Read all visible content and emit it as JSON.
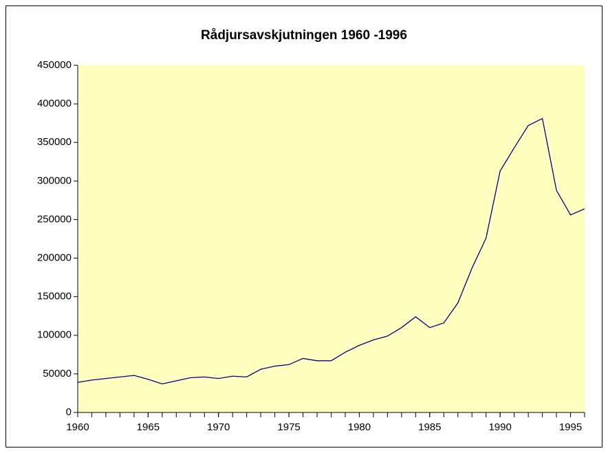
{
  "chart_data": {
    "type": "line",
    "title": "Rådjursavskjutningen 1960 -1996",
    "x": [
      1960,
      1961,
      1962,
      1963,
      1964,
      1965,
      1966,
      1967,
      1968,
      1969,
      1970,
      1971,
      1972,
      1973,
      1974,
      1975,
      1976,
      1977,
      1978,
      1979,
      1980,
      1981,
      1982,
      1983,
      1984,
      1985,
      1986,
      1987,
      1988,
      1989,
      1990,
      1991,
      1992,
      1993,
      1994,
      1995,
      1996
    ],
    "series": [
      {
        "color": "#000080",
        "values": [
          39000,
          42000,
          44000,
          46000,
          48000,
          43000,
          37000,
          41000,
          45000,
          46000,
          44000,
          47000,
          46000,
          56000,
          60000,
          62000,
          70000,
          67000,
          67000,
          78000,
          87000,
          94000,
          99000,
          110000,
          124000,
          110000,
          116000,
          142000,
          187000,
          226000,
          313000,
          343000,
          372000,
          381000,
          288000,
          256000,
          264000
        ]
      }
    ],
    "xlim": [
      1960,
      1996
    ],
    "xticks": [
      1960,
      1965,
      1970,
      1975,
      1980,
      1985,
      1990,
      1995
    ],
    "ylim": [
      0,
      450000
    ],
    "yticks": [
      0,
      50000,
      100000,
      150000,
      200000,
      250000,
      300000,
      350000,
      400000,
      450000
    ],
    "plot_background": "#ffffc0"
  }
}
